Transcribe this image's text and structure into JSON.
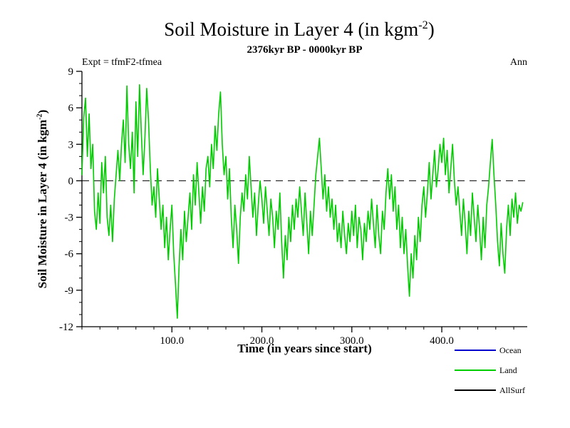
{
  "header": {
    "title_pre": "Soil Moisture in Layer 4 (in kgm",
    "title_sup": "-2",
    "title_post": ")",
    "subtitle": "2376kyr BP - 0000kyr BP",
    "expt_label": "Expt = tfmF2-tfmea",
    "season_label": "Ann"
  },
  "axes": {
    "y_label_pre": "Soil Moisture in Layer 4 (in kgm",
    "y_label_sup": "-2",
    "y_label_post": ")",
    "x_label": "Time (in years since start)"
  },
  "legend": [
    {
      "label": "Ocean",
      "color": "#0000cc"
    },
    {
      "label": "Land",
      "color": "#00cc00"
    },
    {
      "label": "AllSurf",
      "color": "#000000"
    }
  ],
  "chart_data": {
    "type": "line",
    "title": "Soil Moisture in Layer 4 (in kgm-2)",
    "subtitle": "2376kyr BP - 0000kyr BP",
    "xlabel": "Time (in years since start)",
    "ylabel": "Soil Moisture in Layer 4 (in kgm-2)",
    "xlim": [
      0,
      495
    ],
    "ylim": [
      -12,
      9
    ],
    "y_ticks": [
      9,
      6,
      3,
      0,
      -3,
      -6,
      -9,
      -12
    ],
    "x_ticks": [
      100,
      200,
      300,
      400
    ],
    "x_tick_labels": [
      "100.0",
      "200.0",
      "300.0",
      "400.0"
    ],
    "zero_line": true,
    "grid": false,
    "legend_position": "bottom-right",
    "x_start": 0,
    "x_step": 2,
    "series": [
      {
        "name": "Land",
        "color": "#00cc00",
        "values": [
          0.5,
          5.2,
          6.8,
          2.0,
          5.5,
          1.0,
          3.0,
          -2.5,
          -4.0,
          -1.0,
          -3.5,
          1.5,
          -1.0,
          2.0,
          -3.0,
          -4.5,
          -2.0,
          -5.0,
          -1.5,
          0.5,
          2.5,
          0.0,
          3.0,
          5.0,
          1.5,
          7.8,
          3.0,
          1.0,
          4.0,
          -1.0,
          6.5,
          2.0,
          7.9,
          4.0,
          0.5,
          3.5,
          7.6,
          5.0,
          1.0,
          -2.0,
          -0.5,
          -3.0,
          1.0,
          -1.5,
          -4.0,
          -2.0,
          -5.5,
          -3.0,
          -6.5,
          -4.0,
          -2.0,
          -6.0,
          -8.5,
          -11.3,
          -7.0,
          -4.0,
          -6.5,
          -2.5,
          -5.0,
          -3.0,
          -1.0,
          -4.0,
          0.5,
          -2.0,
          1.5,
          -1.0,
          -3.5,
          -0.5,
          -2.5,
          1.0,
          2.0,
          -0.5,
          3.0,
          1.0,
          4.5,
          2.5,
          5.5,
          7.3,
          3.0,
          0.5,
          2.0,
          -1.5,
          1.0,
          -3.0,
          -5.5,
          -2.0,
          -4.0,
          -6.8,
          -3.0,
          -1.0,
          -2.5,
          0.5,
          -1.5,
          2.0,
          -0.5,
          -3.0,
          -1.0,
          -4.5,
          -2.0,
          0.0,
          -1.5,
          -3.5,
          -0.5,
          -2.5,
          -4.5,
          -1.5,
          -3.0,
          -5.5,
          -2.5,
          -4.0,
          -1.0,
          -5.0,
          -8.0,
          -4.5,
          -6.5,
          -3.0,
          -5.0,
          -2.0,
          -4.0,
          -1.5,
          -3.0,
          -0.5,
          -2.5,
          -4.5,
          -1.0,
          -3.5,
          -6.0,
          -2.5,
          -4.5,
          -2.0,
          0.5,
          2.0,
          3.5,
          1.0,
          -1.5,
          0.5,
          -2.5,
          -0.5,
          -3.0,
          -1.5,
          -4.0,
          -2.0,
          -5.0,
          -3.5,
          -5.5,
          -2.5,
          -4.5,
          -6.0,
          -3.5,
          -5.0,
          -2.5,
          -4.5,
          -2.0,
          -5.5,
          -3.0,
          -4.0,
          -6.5,
          -3.5,
          -5.0,
          -2.5,
          -4.0,
          -1.5,
          -3.5,
          -5.5,
          -2.0,
          -4.5,
          -6.0,
          -2.5,
          -4.0,
          -1.0,
          1.0,
          -1.5,
          0.5,
          -2.5,
          -0.5,
          -4.0,
          -2.0,
          -5.5,
          -3.0,
          -6.0,
          -4.0,
          -7.0,
          -9.5,
          -6.0,
          -8.0,
          -4.5,
          -6.5,
          -3.0,
          -5.0,
          -2.0,
          -0.5,
          -3.0,
          -1.0,
          1.5,
          -1.5,
          0.5,
          2.5,
          -0.5,
          1.0,
          3.0,
          1.5,
          3.5,
          0.5,
          2.5,
          -1.0,
          1.0,
          3.0,
          0.0,
          -2.0,
          -0.5,
          -2.5,
          -4.5,
          -1.5,
          -3.5,
          -6.0,
          -2.5,
          -4.5,
          -1.0,
          -3.0,
          -5.0,
          -2.0,
          -4.0,
          -6.5,
          -3.0,
          -5.5,
          -2.0,
          -0.5,
          1.5,
          3.4,
          0.5,
          -2.0,
          -5.0,
          -7.0,
          -3.5,
          -6.0,
          -7.6,
          -4.0,
          -2.0,
          -4.5,
          -1.5,
          -3.0,
          -1.0,
          -3.5,
          -2.0,
          -2.5,
          -1.8
        ]
      }
    ]
  }
}
